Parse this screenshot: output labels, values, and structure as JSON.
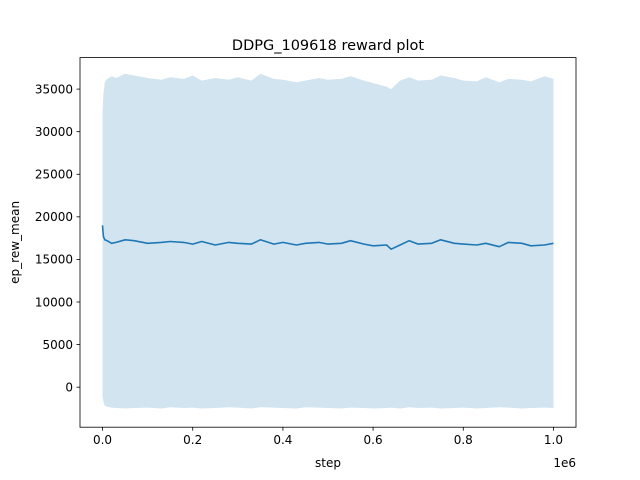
{
  "chart_data": {
    "type": "line",
    "title": "DDPG_109618 reward plot",
    "xlabel": "step",
    "ylabel": "ep_rew_mean",
    "x_offset_text": "1e6",
    "xlim": [
      -0.05,
      1.05
    ],
    "ylim": [
      -4700,
      38700
    ],
    "x_ticks": [
      0.0,
      0.2,
      0.4,
      0.6,
      0.8,
      1.0
    ],
    "x_tick_labels": [
      "0.0",
      "0.2",
      "0.4",
      "0.6",
      "0.8",
      "1.0"
    ],
    "y_ticks": [
      0,
      5000,
      10000,
      15000,
      20000,
      25000,
      30000,
      35000
    ],
    "y_tick_labels": [
      "0",
      "5000",
      "10000",
      "15000",
      "20000",
      "25000",
      "30000",
      "35000"
    ],
    "grid": false,
    "legend": "none",
    "colors": {
      "line": "#1f77b4",
      "band": "#1f77b4",
      "axes": "#000000",
      "background": "#ffffff"
    },
    "series": [
      {
        "x": [
          0.0,
          0.002,
          0.005,
          0.01,
          0.02,
          0.03,
          0.05,
          0.07,
          0.1,
          0.13,
          0.15,
          0.18,
          0.2,
          0.22,
          0.25,
          0.28,
          0.3,
          0.33,
          0.35,
          0.38,
          0.4,
          0.43,
          0.45,
          0.48,
          0.5,
          0.53,
          0.55,
          0.58,
          0.6,
          0.63,
          0.64,
          0.66,
          0.68,
          0.7,
          0.73,
          0.75,
          0.78,
          0.8,
          0.83,
          0.85,
          0.88,
          0.9,
          0.93,
          0.95,
          0.98,
          1.0
        ],
        "y": [
          19000,
          17700,
          17300,
          17200,
          16900,
          17000,
          17300,
          17200,
          16900,
          17000,
          17100,
          17000,
          16800,
          17100,
          16700,
          17000,
          16900,
          16800,
          17300,
          16800,
          17000,
          16700,
          16900,
          17000,
          16800,
          16900,
          17200,
          16800,
          16600,
          16700,
          16200,
          16700,
          17200,
          16800,
          16900,
          17300,
          16900,
          16800,
          16700,
          16900,
          16500,
          17000,
          16900,
          16600,
          16700,
          16900
        ],
        "band_upper": [
          32000,
          34500,
          35800,
          36200,
          36500,
          36300,
          36800,
          36600,
          36300,
          36100,
          36400,
          36200,
          36600,
          36000,
          36300,
          36100,
          36400,
          36000,
          36800,
          36200,
          36100,
          35800,
          36000,
          36300,
          36100,
          36200,
          36500,
          36000,
          35700,
          35300,
          35000,
          36000,
          36400,
          36000,
          36100,
          36600,
          36300,
          36000,
          35900,
          36400,
          35800,
          36200,
          36100,
          35900,
          36500,
          36200
        ],
        "band_lower": [
          -1000,
          -1700,
          -2200,
          -2300,
          -2400,
          -2450,
          -2500,
          -2450,
          -2400,
          -2500,
          -2350,
          -2450,
          -2400,
          -2500,
          -2450,
          -2350,
          -2400,
          -2500,
          -2350,
          -2400,
          -2450,
          -2500,
          -2350,
          -2400,
          -2450,
          -2500,
          -2400,
          -2450,
          -2500,
          -2450,
          -2400,
          -2500,
          -2350,
          -2450,
          -2400,
          -2500,
          -2450,
          -2400,
          -2500,
          -2450,
          -2350,
          -2400,
          -2500,
          -2450,
          -2400,
          -2450
        ]
      }
    ]
  }
}
